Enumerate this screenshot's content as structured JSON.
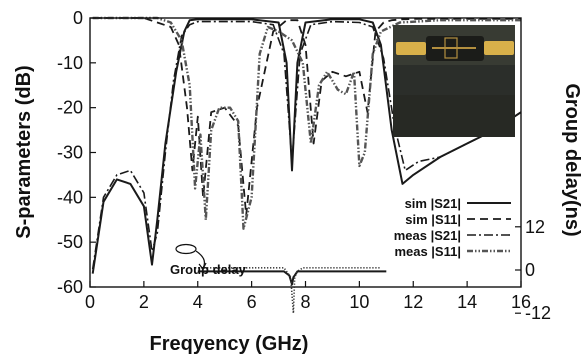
{
  "chart_data": {
    "type": "line",
    "xlabel": "Freqyency (GHz)",
    "ylabel": "S-parameters (dB)",
    "y2label": "Group delay(ns)",
    "xlim": [
      0,
      16
    ],
    "ylim": [
      -60,
      0
    ],
    "y2lim": [
      -12,
      12
    ],
    "x_ticks": [
      "0",
      "2",
      "4",
      "6",
      "8",
      "10",
      "12",
      "14",
      "16"
    ],
    "y_ticks": [
      "0",
      "-10",
      "-20",
      "-30",
      "-40",
      "-50",
      "-60"
    ],
    "y2_ticks": [
      "12",
      "0",
      "-12"
    ],
    "annotation": "Group delay",
    "photo": "fabricated filter prototype",
    "legend_position": "right-middle",
    "series": [
      {
        "name": "sim |S21|",
        "style": "solid",
        "x": [
          0.1,
          0.5,
          1.0,
          1.5,
          2.0,
          2.3,
          2.5,
          2.8,
          3.2,
          3.5,
          3.7,
          4.0,
          5.0,
          6.0,
          7.0,
          7.3,
          7.5,
          7.7,
          8.0,
          9.0,
          10.0,
          10.5,
          10.8,
          11.2,
          11.6,
          12.0,
          13.0,
          14.0,
          15.0,
          16.0
        ],
        "y": [
          -57,
          -41,
          -36,
          -37,
          -42,
          -55,
          -45,
          -28,
          -12,
          -3,
          -0.5,
          -0.3,
          -0.3,
          -0.3,
          -1,
          -10,
          -34,
          -10,
          -1,
          -0.3,
          -0.3,
          -1,
          -6,
          -25,
          -37,
          -35,
          -31,
          -28,
          -25,
          -21
        ]
      },
      {
        "name": "sim |S11|",
        "style": "dashed",
        "x": [
          0.1,
          2.0,
          2.5,
          3.0,
          3.3,
          3.6,
          3.8,
          4.0,
          4.2,
          4.5,
          5.0,
          5.5,
          5.8,
          6.2,
          6.8,
          7.3,
          7.7,
          8.0,
          8.3,
          8.6,
          9.0,
          9.5,
          10.0,
          10.3,
          10.6,
          10.9,
          11.2,
          11.6,
          12.0,
          13.0,
          16.0
        ],
        "y": [
          0,
          0,
          -1,
          -2,
          -6,
          -20,
          -34,
          -22,
          -40,
          -21,
          -20,
          -24,
          -44,
          -20,
          -3,
          -0.5,
          -0.5,
          -6,
          -28,
          -14,
          -12,
          -13,
          -12,
          -21,
          -3,
          -1,
          -0.5,
          -0.3,
          -0.2,
          -0.2,
          -0.2
        ]
      },
      {
        "name": "meas |S21|",
        "style": "dashdot",
        "x": [
          0.1,
          0.5,
          1.0,
          1.5,
          2.0,
          2.3,
          2.5,
          2.8,
          3.1,
          3.4,
          3.7,
          4.0,
          5.0,
          6.0,
          6.8,
          7.2,
          7.5,
          7.8,
          8.2,
          9.0,
          10.0,
          10.5,
          10.9,
          11.3,
          11.7,
          12.2,
          13.0,
          14.0,
          15.0,
          16.0
        ],
        "y": [
          -56,
          -40,
          -35,
          -34,
          -39,
          -52,
          -48,
          -30,
          -14,
          -4,
          -1.5,
          -0.8,
          -0.8,
          -0.8,
          -1.5,
          -8,
          -32,
          -8,
          -1.5,
          -0.8,
          -1,
          -2,
          -9,
          -24,
          -34,
          -32,
          -31,
          -28,
          -25,
          -21
        ]
      },
      {
        "name": "meas |S11|",
        "style": "dashdotdot",
        "x": [
          0.1,
          2.5,
          3.0,
          3.4,
          3.7,
          3.9,
          4.1,
          4.3,
          4.5,
          4.8,
          5.2,
          5.5,
          5.7,
          6.0,
          6.3,
          6.6,
          7.0,
          7.5,
          7.9,
          8.2,
          8.5,
          8.8,
          9.2,
          9.5,
          9.8,
          10.0,
          10.2,
          10.5,
          10.8,
          11.5,
          13.0,
          16.0
        ],
        "y": [
          0,
          0,
          -1,
          -5,
          -15,
          -38,
          -26,
          -45,
          -25,
          -20,
          -20,
          -23,
          -47,
          -40,
          -8,
          -2,
          -3,
          -5,
          -10,
          -28,
          -15,
          -12,
          -16,
          -17,
          -12,
          -33,
          -30,
          -8,
          -3,
          -1,
          -0.5,
          -0.5
        ]
      },
      {
        "name": "group delay sim",
        "style": "solid",
        "axis": "y2",
        "x": [
          4.0,
          7.2,
          7.4,
          7.5,
          7.55,
          7.6,
          7.7,
          7.9,
          11.0
        ],
        "y": [
          -0.4,
          -0.4,
          -1.5,
          -4,
          -2,
          -1.5,
          -0.4,
          -0.4,
          -0.4
        ]
      },
      {
        "name": "group delay meas",
        "style": "dotted",
        "axis": "y2",
        "x": [
          3.9,
          7.2,
          7.45,
          7.55,
          7.6,
          7.7,
          7.9,
          10.8
        ],
        "y": [
          0.6,
          0.6,
          -2,
          -12,
          -2,
          -0.4,
          0.6,
          0.6
        ]
      }
    ]
  }
}
